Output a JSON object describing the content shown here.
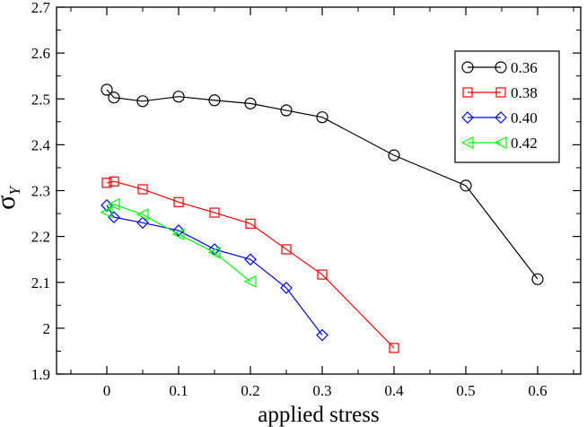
{
  "chart_data": {
    "type": "line",
    "title": "",
    "xlabel": "applied stress",
    "ylabel": "σ",
    "ylabel_subscript": "Y",
    "xlim": [
      -0.07,
      0.66
    ],
    "ylim": [
      1.9,
      2.7
    ],
    "xticks": [
      0,
      0.1,
      0.2,
      0.3,
      0.4,
      0.5,
      0.6
    ],
    "xtick_labels": [
      "0",
      "0.1",
      "0.2",
      "0.3",
      "0.4",
      "0.5",
      "0.6"
    ],
    "yticks": [
      1.9,
      2.0,
      2.1,
      2.2,
      2.3,
      2.4,
      2.5,
      2.6,
      2.7
    ],
    "ytick_labels": [
      "1.9",
      "2",
      "2.1",
      "2.2",
      "2.3",
      "2.4",
      "2.5",
      "2.6",
      "2.7"
    ],
    "grid": false,
    "legend_position": "top-right",
    "series": [
      {
        "name": "0.36",
        "color": "#000000",
        "marker": "circle",
        "x": [
          0,
          0.01,
          0.05,
          0.1,
          0.15,
          0.2,
          0.25,
          0.3,
          0.4,
          0.5,
          0.6
        ],
        "y": [
          2.52,
          2.503,
          2.495,
          2.505,
          2.497,
          2.49,
          2.475,
          2.46,
          2.377,
          2.311,
          2.107
        ]
      },
      {
        "name": "0.38",
        "color": "#ff0000",
        "marker": "square",
        "x": [
          0,
          0.01,
          0.05,
          0.1,
          0.15,
          0.2,
          0.25,
          0.3,
          0.4
        ],
        "y": [
          2.317,
          2.32,
          2.303,
          2.275,
          2.252,
          2.228,
          2.172,
          2.117,
          1.957
        ]
      },
      {
        "name": "0.40",
        "color": "#0000ff",
        "marker": "diamond",
        "x": [
          0,
          0.01,
          0.05,
          0.1,
          0.15,
          0.2,
          0.25,
          0.3
        ],
        "y": [
          2.268,
          2.242,
          2.23,
          2.213,
          2.172,
          2.15,
          2.088,
          1.985
        ]
      },
      {
        "name": "0.42",
        "color": "#00ff00",
        "marker": "triangle-left",
        "x": [
          0,
          0.01,
          0.05,
          0.1,
          0.15,
          0.2
        ],
        "y": [
          2.253,
          2.27,
          2.248,
          2.205,
          2.165,
          2.102
        ]
      }
    ]
  }
}
